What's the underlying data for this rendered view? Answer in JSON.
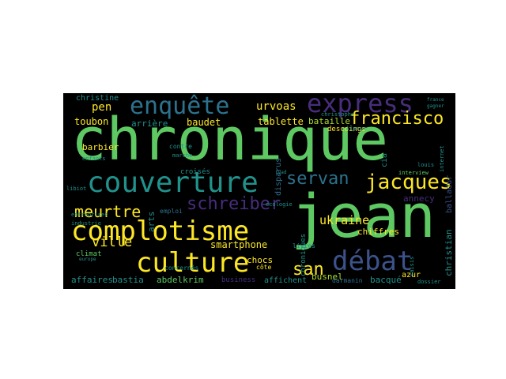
{
  "palette": {
    "green": "#5ec962",
    "yellow": "#fde725",
    "teal": "#21918c",
    "blue": "#3b528b",
    "purple": "#472d7b",
    "cyan": "#2c728e",
    "lime": "#addc30",
    "dark": "#440154"
  },
  "words": [
    "chronique",
    "jean",
    "complotisme",
    "culture",
    "couverture",
    "débat",
    "enquête",
    "express",
    "francisco",
    "jacques",
    "meurtre",
    "schreiber",
    "servan",
    "san",
    "ukraine",
    "smartphone",
    "ville",
    "pen",
    "urvoas",
    "toubon",
    "baudet",
    "tablette",
    "bataille",
    "barbier",
    "arts",
    "christine",
    "arrière",
    "bouleversent",
    "christophe",
    "affaires",
    "bastia",
    "abdelkrim",
    "business",
    "concernés",
    "affichent",
    "busnel",
    "bacqué",
    "darmanin",
    "azur",
    "christian",
    "chocs",
    "côte",
    "annecy",
    "chiffres",
    "livres",
    "climat",
    "dossier",
    "contre",
    "emploi",
    "croisés",
    "disparus",
    "cia",
    "balladur",
    "internet",
    "interview",
    "louis",
    "descoings",
    "lipsyc",
    "ryad",
    "marche",
    "enfants",
    "entreprises",
    "industrie",
    "libiot",
    "écologie",
    "chroniques",
    "saisis",
    "europe",
    "france",
    "gagner"
  ]
}
